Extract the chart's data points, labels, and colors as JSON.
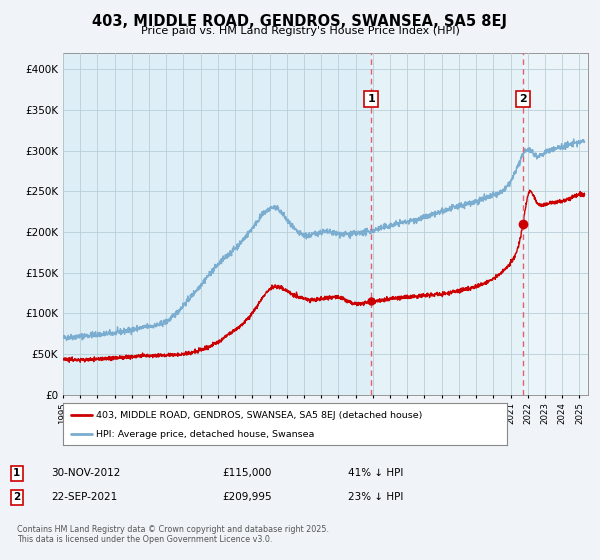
{
  "title": "403, MIDDLE ROAD, GENDROS, SWANSEA, SA5 8EJ",
  "subtitle": "Price paid vs. HM Land Registry's House Price Index (HPI)",
  "legend_entry1": "403, MIDDLE ROAD, GENDROS, SWANSEA, SA5 8EJ (detached house)",
  "legend_entry2": "HPI: Average price, detached house, Swansea",
  "annotation1_date": "30-NOV-2012",
  "annotation1_price": "£115,000",
  "annotation1_hpi": "41% ↓ HPI",
  "annotation1_year": 2012.92,
  "annotation1_value_red": 115000,
  "annotation2_date": "22-SEP-2021",
  "annotation2_price": "£209,995",
  "annotation2_hpi": "23% ↓ HPI",
  "annotation2_year": 2021.72,
  "annotation2_value_red": 209995,
  "red_color": "#cc0000",
  "blue_color": "#7aadcf",
  "chart_bg_color": "#ddeef6",
  "shade_color": "#cce4f0",
  "plot_bg_color": "#ddeef6",
  "outer_bg_color": "#f0f4f8",
  "grid_color": "#b8cfd8",
  "dashed_line_color": "#e06070",
  "footer_text": "Contains HM Land Registry data © Crown copyright and database right 2025.\nThis data is licensed under the Open Government Licence v3.0.",
  "ylim": [
    0,
    420000
  ],
  "xlim_start": 1995,
  "xlim_end": 2025.5,
  "yticks": [
    0,
    50000,
    100000,
    150000,
    200000,
    250000,
    300000,
    350000,
    400000
  ],
  "ytick_labels": [
    "£0",
    "£50K",
    "£100K",
    "£150K",
    "£200K",
    "£250K",
    "£300K",
    "£350K",
    "£400K"
  ]
}
